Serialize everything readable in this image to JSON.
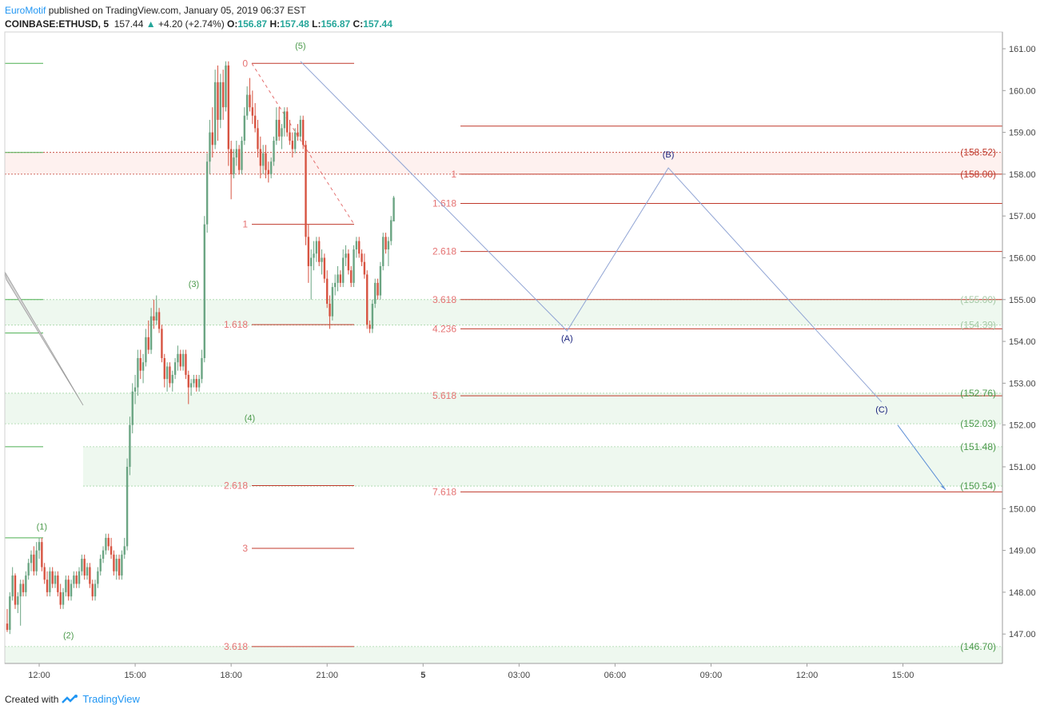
{
  "header": {
    "author": "EuroMotif",
    "published_text": "published on TradingView.com, January 05, 2019 06:37 EST",
    "symbol": "COINBASE:ETHUSD, 5",
    "last": "157.44",
    "change": "+4.20 (+2.74%)",
    "o_label": "O:",
    "o_value": "156.87",
    "h_label": "H:",
    "h_value": "157.48",
    "l_label": "L:",
    "l_value": "156.87",
    "c_label": "C:",
    "c_value": "157.44"
  },
  "footer": {
    "created_with": "Created with",
    "brand": "TradingView"
  },
  "colors": {
    "up": "#6ba583",
    "down": "#d75442",
    "fib": "#c0392b",
    "wave_green": "#4caf50",
    "wave_blue": "#1a237e",
    "zone_red": "#fdecea",
    "zone_green": "#e8f5e9",
    "path_blue": "#90a4d4"
  },
  "chart_data": {
    "type": "candlestick",
    "ylim": [
      146.3,
      161.3
    ],
    "price_ticks": [
      "161.00",
      "160.00",
      "159.00",
      "158.00",
      "157.00",
      "156.00",
      "155.00",
      "154.00",
      "153.00",
      "152.00",
      "151.00",
      "150.00",
      "149.00",
      "148.00",
      "147.00"
    ],
    "time_ticks": [
      {
        "label": "12:00",
        "bar": 12
      },
      {
        "label": "15:00",
        "bar": 48
      },
      {
        "label": "18:00",
        "bar": 84
      },
      {
        "label": "21:00",
        "bar": 120
      },
      {
        "label": "5",
        "bar": 156
      },
      {
        "label": "03:00",
        "bar": 192
      },
      {
        "label": "06:00",
        "bar": 228
      },
      {
        "label": "09:00",
        "bar": 264
      },
      {
        "label": "12:00",
        "bar": 300
      },
      {
        "label": "15:00",
        "bar": 336
      }
    ],
    "price_labels": [
      "158.52",
      "158.00",
      "155.00",
      "154.39",
      "152.76",
      "152.03",
      "151.48",
      "150.54",
      "146.70"
    ],
    "fib_left": {
      "levels": [
        {
          "label": "0",
          "price": 160.65
        },
        {
          "label": "1",
          "price": 156.8
        },
        {
          "label": "1.618",
          "price": 154.4
        },
        {
          "label": "2.618",
          "price": 150.55
        },
        {
          "label": "3",
          "price": 149.05
        },
        {
          "label": "3.618",
          "price": 146.7
        }
      ]
    },
    "fib_right": {
      "levels": [
        {
          "label": "1",
          "price": 158.0
        },
        {
          "label": "1.618",
          "price": 157.3
        },
        {
          "label": "2.618",
          "price": 156.15
        },
        {
          "label": "3.618",
          "price": 155.0
        },
        {
          "label": "4.236",
          "price": 154.3
        },
        {
          "label": "5.618",
          "price": 152.7
        },
        {
          "label": "7.618",
          "price": 150.4
        }
      ]
    },
    "waves": [
      {
        "label": "(1)",
        "bar": 13,
        "price": 149.5
      },
      {
        "label": "(2)",
        "bar": 23,
        "price": 146.9
      },
      {
        "label": "(3)",
        "bar": 70,
        "price": 155.3
      },
      {
        "label": "(4)",
        "bar": 91,
        "price": 152.1
      },
      {
        "label": "(5)",
        "bar": 110,
        "price": 161.0
      },
      {
        "label": "(A)",
        "bar": 210,
        "price": 154.0
      },
      {
        "label": "(B)",
        "bar": 248,
        "price": 158.4
      },
      {
        "label": "(C)",
        "bar": 328,
        "price": 152.3
      }
    ],
    "abc_path": [
      {
        "bar": 110,
        "price": 160.7
      },
      {
        "bar": 210,
        "price": 154.25
      },
      {
        "bar": 248,
        "price": 158.15
      },
      {
        "bar": 328,
        "price": 152.55
      }
    ],
    "projection": [
      {
        "bar": 334,
        "price": 152.0
      },
      {
        "bar": 352,
        "price": 150.45
      }
    ],
    "candles": [
      [
        147.25,
        147.6,
        147.05,
        147.1
      ],
      [
        147.1,
        148.0,
        147.0,
        147.9
      ],
      [
        147.9,
        148.6,
        147.8,
        148.4
      ],
      [
        148.4,
        148.45,
        147.6,
        147.7
      ],
      [
        147.7,
        148.0,
        147.5,
        147.9
      ],
      [
        147.9,
        148.3,
        147.2,
        148.2
      ],
      [
        148.2,
        148.3,
        147.9,
        148.0
      ],
      [
        148.0,
        148.5,
        147.9,
        148.4
      ],
      [
        148.4,
        148.8,
        148.3,
        148.7
      ],
      [
        148.7,
        149.0,
        148.5,
        148.9
      ],
      [
        148.9,
        149.1,
        148.4,
        148.5
      ],
      [
        148.5,
        149.2,
        148.4,
        149.0
      ],
      [
        149.0,
        149.3,
        148.8,
        149.2
      ],
      [
        149.2,
        149.3,
        148.5,
        148.6
      ],
      [
        148.6,
        148.7,
        148.2,
        148.3
      ],
      [
        148.3,
        148.5,
        147.9,
        148.0
      ],
      [
        148.0,
        148.6,
        147.9,
        148.5
      ],
      [
        148.5,
        148.6,
        148.1,
        148.2
      ],
      [
        148.2,
        148.5,
        148.1,
        148.4
      ],
      [
        148.4,
        148.5,
        147.9,
        148.0
      ],
      [
        148.0,
        148.2,
        147.6,
        147.7
      ],
      [
        147.7,
        148.1,
        147.6,
        148.0
      ],
      [
        148.0,
        148.4,
        147.9,
        148.3
      ],
      [
        148.3,
        148.4,
        147.8,
        147.9
      ],
      [
        147.9,
        148.3,
        147.8,
        148.2
      ],
      [
        148.2,
        148.5,
        148.1,
        148.4
      ],
      [
        148.4,
        148.5,
        148.1,
        148.2
      ],
      [
        148.2,
        148.6,
        148.1,
        148.5
      ],
      [
        148.5,
        148.9,
        148.4,
        148.8
      ],
      [
        148.8,
        148.9,
        148.3,
        148.4
      ],
      [
        148.4,
        148.7,
        148.3,
        148.6
      ],
      [
        148.6,
        148.7,
        148.1,
        148.2
      ],
      [
        148.2,
        148.3,
        147.8,
        147.9
      ],
      [
        147.9,
        148.3,
        147.8,
        148.2
      ],
      [
        148.2,
        148.6,
        148.1,
        148.5
      ],
      [
        148.5,
        148.9,
        148.4,
        148.8
      ],
      [
        148.8,
        149.1,
        148.7,
        149.0
      ],
      [
        149.0,
        149.4,
        148.9,
        149.3
      ],
      [
        149.3,
        149.4,
        149.0,
        149.1
      ],
      [
        149.1,
        149.3,
        148.8,
        148.9
      ],
      [
        148.9,
        149.0,
        148.4,
        148.5
      ],
      [
        148.5,
        148.9,
        148.3,
        148.8
      ],
      [
        148.8,
        148.9,
        148.3,
        148.4
      ],
      [
        148.4,
        149.0,
        148.3,
        148.9
      ],
      [
        148.9,
        149.3,
        148.8,
        149.1
      ],
      [
        149.1,
        151.2,
        149.0,
        151.0
      ],
      [
        151.0,
        152.2,
        150.8,
        152.0
      ],
      [
        152.0,
        153.0,
        151.8,
        152.8
      ],
      [
        152.8,
        153.2,
        152.5,
        152.9
      ],
      [
        152.9,
        153.8,
        152.7,
        153.6
      ],
      [
        153.6,
        153.8,
        153.1,
        153.3
      ],
      [
        153.3,
        153.7,
        153.0,
        153.5
      ],
      [
        153.5,
        154.3,
        153.4,
        154.1
      ],
      [
        154.1,
        154.5,
        153.7,
        153.8
      ],
      [
        153.8,
        154.8,
        153.7,
        154.6
      ],
      [
        154.6,
        155.0,
        154.3,
        154.5
      ],
      [
        154.5,
        155.1,
        154.4,
        154.7
      ],
      [
        154.7,
        154.8,
        154.2,
        154.3
      ],
      [
        154.3,
        154.4,
        153.5,
        153.6
      ],
      [
        153.6,
        153.7,
        152.9,
        153.1
      ],
      [
        153.1,
        153.5,
        152.8,
        153.4
      ],
      [
        153.4,
        153.5,
        152.9,
        153.0
      ],
      [
        153.0,
        153.3,
        152.8,
        153.2
      ],
      [
        153.2,
        153.6,
        153.1,
        153.5
      ],
      [
        153.5,
        153.9,
        153.3,
        153.7
      ],
      [
        153.7,
        153.8,
        153.3,
        153.4
      ],
      [
        153.4,
        153.8,
        153.3,
        153.7
      ],
      [
        153.7,
        153.8,
        153.1,
        153.2
      ],
      [
        153.2,
        153.3,
        152.5,
        152.9
      ],
      [
        152.9,
        153.1,
        152.7,
        153.0
      ],
      [
        153.0,
        153.2,
        152.9,
        153.1
      ],
      [
        153.1,
        153.2,
        152.8,
        152.9
      ],
      [
        152.9,
        153.2,
        152.8,
        153.1
      ],
      [
        153.1,
        153.8,
        153.0,
        153.6
      ],
      [
        153.6,
        157.0,
        153.5,
        156.8
      ],
      [
        156.8,
        158.5,
        156.6,
        158.3
      ],
      [
        158.3,
        159.3,
        158.0,
        159.0
      ],
      [
        159.0,
        159.6,
        158.4,
        158.7
      ],
      [
        158.7,
        160.5,
        158.6,
        160.2
      ],
      [
        160.2,
        160.6,
        158.8,
        159.3
      ],
      [
        159.3,
        160.4,
        159.1,
        160.2
      ],
      [
        160.2,
        160.5,
        159.3,
        159.6
      ],
      [
        159.6,
        160.7,
        159.5,
        160.6
      ],
      [
        160.6,
        160.7,
        158.2,
        158.6
      ],
      [
        158.6,
        158.8,
        157.4,
        158.0
      ],
      [
        158.0,
        158.6,
        157.9,
        158.4
      ],
      [
        158.4,
        158.8,
        158.2,
        158.6
      ],
      [
        158.6,
        158.7,
        158.0,
        158.1
      ],
      [
        158.1,
        158.9,
        158.0,
        158.8
      ],
      [
        158.8,
        159.6,
        158.7,
        159.4
      ],
      [
        159.4,
        160.1,
        159.3,
        159.9
      ],
      [
        159.9,
        160.3,
        159.5,
        159.6
      ],
      [
        159.6,
        160.0,
        159.2,
        159.4
      ],
      [
        159.4,
        159.7,
        159.0,
        159.1
      ],
      [
        159.1,
        159.3,
        158.4,
        158.6
      ],
      [
        158.6,
        158.9,
        157.9,
        158.2
      ],
      [
        158.2,
        158.7,
        158.0,
        158.5
      ],
      [
        158.5,
        158.7,
        157.9,
        158.1
      ],
      [
        158.1,
        158.3,
        157.8,
        158.0
      ],
      [
        158.0,
        158.4,
        157.9,
        158.3
      ],
      [
        158.3,
        158.9,
        158.2,
        158.8
      ],
      [
        158.8,
        159.6,
        158.7,
        159.3
      ],
      [
        159.3,
        159.6,
        158.8,
        158.9
      ],
      [
        158.9,
        159.2,
        158.6,
        159.1
      ],
      [
        159.1,
        159.6,
        158.9,
        159.5
      ],
      [
        159.5,
        159.6,
        158.9,
        159.0
      ],
      [
        159.0,
        159.3,
        158.7,
        158.8
      ],
      [
        158.8,
        159.0,
        158.4,
        158.6
      ],
      [
        158.6,
        159.1,
        158.5,
        159.0
      ],
      [
        159.0,
        159.2,
        158.8,
        158.9
      ],
      [
        158.9,
        159.4,
        158.8,
        159.3
      ],
      [
        159.3,
        159.4,
        158.6,
        158.7
      ],
      [
        158.7,
        158.8,
        156.3,
        156.5
      ],
      [
        156.5,
        156.8,
        155.4,
        155.8
      ],
      [
        155.8,
        156.2,
        155.0,
        156.0
      ],
      [
        156.0,
        156.4,
        155.7,
        156.1
      ],
      [
        156.1,
        156.5,
        155.9,
        156.4
      ],
      [
        156.4,
        156.5,
        155.8,
        155.9
      ],
      [
        155.9,
        156.2,
        155.6,
        156.0
      ],
      [
        156.0,
        156.1,
        155.4,
        155.5
      ],
      [
        155.5,
        155.7,
        154.8,
        154.9
      ],
      [
        154.9,
        155.1,
        154.3,
        154.6
      ],
      [
        154.6,
        155.4,
        154.5,
        155.3
      ],
      [
        155.3,
        155.6,
        155.1,
        155.4
      ],
      [
        155.4,
        155.8,
        155.2,
        155.6
      ],
      [
        155.6,
        155.7,
        155.3,
        155.4
      ],
      [
        155.4,
        156.2,
        155.3,
        156.0
      ],
      [
        156.0,
        156.3,
        155.8,
        156.1
      ],
      [
        156.1,
        156.2,
        155.6,
        155.7
      ],
      [
        155.7,
        155.8,
        155.3,
        155.4
      ],
      [
        155.4,
        156.3,
        155.3,
        156.2
      ],
      [
        156.2,
        156.5,
        156.0,
        156.4
      ],
      [
        156.4,
        156.5,
        156.0,
        156.1
      ],
      [
        156.1,
        156.2,
        155.8,
        155.9
      ],
      [
        155.9,
        156.1,
        155.5,
        155.6
      ],
      [
        155.6,
        155.7,
        154.3,
        154.4
      ],
      [
        154.4,
        154.5,
        154.2,
        154.3
      ],
      [
        154.3,
        155.0,
        154.2,
        154.9
      ],
      [
        154.9,
        155.5,
        154.8,
        155.4
      ],
      [
        155.4,
        155.5,
        155.0,
        155.1
      ],
      [
        155.1,
        155.9,
        155.0,
        155.8
      ],
      [
        155.8,
        156.6,
        155.7,
        156.5
      ],
      [
        156.5,
        156.6,
        156.1,
        156.2
      ],
      [
        156.2,
        156.5,
        155.8,
        156.4
      ],
      [
        156.4,
        157.0,
        156.3,
        156.9
      ],
      [
        156.87,
        157.48,
        156.87,
        157.44
      ]
    ]
  }
}
